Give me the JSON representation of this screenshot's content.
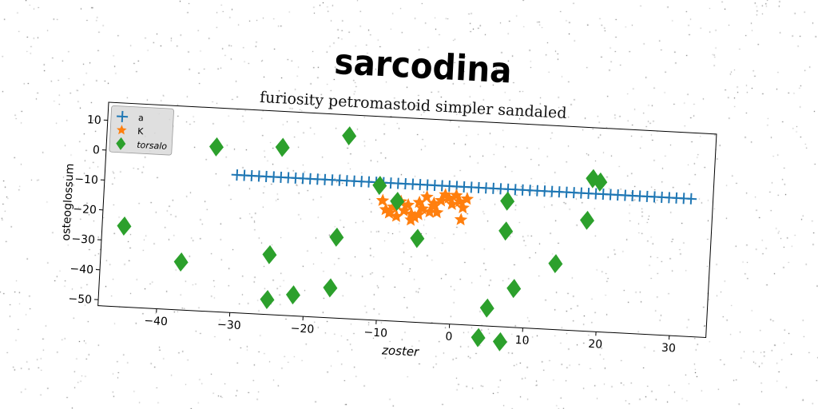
{
  "suptitle": "sarcodina",
  "chart_data": {
    "type": "scatter",
    "title": "furiosity petromastoid simpler sandaled",
    "xlabel": "zoster",
    "ylabel": "osteoglossum",
    "xlim": [
      -48,
      35
    ],
    "ylim": [
      -52,
      16
    ],
    "xticks": [
      -40,
      -30,
      -20,
      -10,
      0,
      10,
      20,
      30
    ],
    "yticks": [
      10,
      0,
      -10,
      -20,
      -30,
      -40,
      -50
    ],
    "grid": false,
    "legend_position": "top-left",
    "series": [
      {
        "name": "a",
        "marker": "plus-line",
        "color": "#1f77b4",
        "x": [
          -30,
          -29,
          -28,
          -27,
          -26,
          -25,
          -24,
          -23,
          -22,
          -21,
          -20,
          -19,
          -18,
          -17,
          -16,
          -15,
          -14,
          -13,
          -12,
          -11,
          -10,
          -9,
          -8,
          -7,
          -6,
          -5,
          -4,
          -3,
          -2,
          -1,
          0,
          1,
          2,
          3,
          4,
          5,
          6,
          7,
          8,
          9,
          10,
          11,
          12,
          13,
          14,
          15,
          16,
          17,
          18,
          19,
          20,
          21,
          22,
          23,
          24,
          25,
          26,
          27,
          28,
          29,
          30,
          31,
          32
        ],
        "y": [
          -6,
          -6,
          -6,
          -6,
          -6,
          -6,
          -6,
          -6,
          -6,
          -6,
          -6,
          -6,
          -6,
          -6,
          -6,
          -6,
          -6,
          -6,
          -6,
          -6,
          -6,
          -6,
          -6,
          -6,
          -6,
          -6,
          -6,
          -6,
          -6,
          -6,
          -6,
          -6,
          -6,
          -6,
          -6,
          -6,
          -6,
          -6,
          -6,
          -6,
          -6,
          -6,
          -6,
          -6,
          -6,
          -6,
          -6,
          -6,
          -6,
          -6,
          -6,
          -6,
          -6,
          -6,
          -6,
          -6,
          -6,
          -6,
          -6,
          -6,
          -6,
          -6,
          -6
        ]
      },
      {
        "name": "K",
        "marker": "star",
        "color": "#ff7f0e",
        "x": [
          -10,
          -9.5,
          -9,
          -8.5,
          -8,
          -7.5,
          -7,
          -6.5,
          -6,
          -5.5,
          -5,
          -4.5,
          -4,
          -3.5,
          -3,
          -2,
          -1.5,
          -1,
          -0.5,
          0,
          0.5,
          1,
          1.5,
          -9,
          -8,
          -6,
          -5,
          -3,
          -2.5,
          0.8
        ],
        "y": [
          -12,
          -15,
          -16,
          -14,
          -13,
          -12,
          -15,
          -13,
          -16,
          -17,
          -12,
          -14,
          -10,
          -15,
          -12,
          -11,
          -9,
          -10,
          -12,
          -9,
          -11,
          -13,
          -10,
          -16,
          -17,
          -18,
          -16,
          -13,
          -15,
          -17
        ]
      },
      {
        "name": "torsalo",
        "marker": "diamond",
        "color": "#2ca02c",
        "x": [
          -45,
          -37,
          -33,
          -25,
          -25,
          -24,
          -21.5,
          -16.5,
          -16,
          -15,
          -10.5,
          -8,
          -5,
          4,
          5,
          7,
          7,
          7,
          8.5,
          14,
          18,
          18.5,
          19.5
        ],
        "y": [
          -25,
          -36,
          3,
          -32,
          -47,
          4,
          -45,
          -42,
          -25,
          9,
          -7,
          -12,
          -24,
          -56,
          -46,
          -57,
          -20,
          -10,
          -39,
          -30,
          -15,
          -1,
          -2
        ]
      }
    ]
  }
}
